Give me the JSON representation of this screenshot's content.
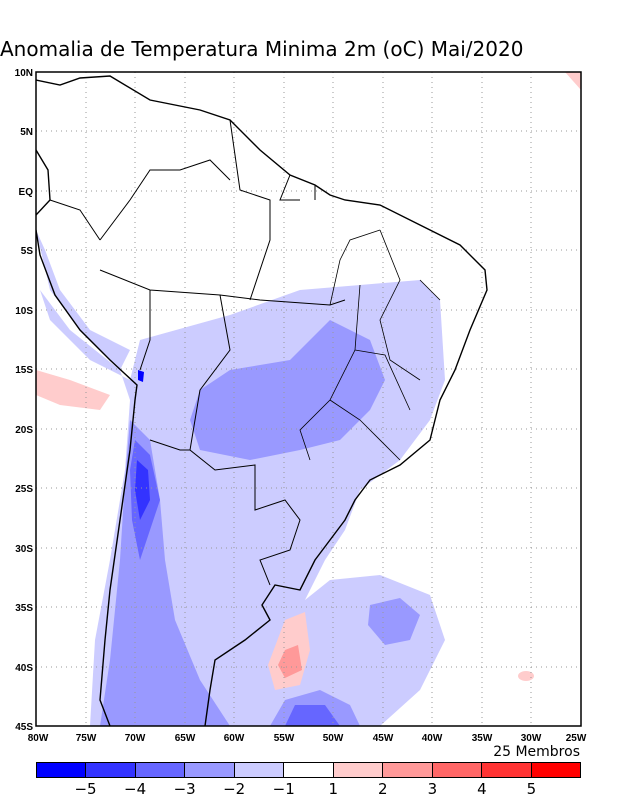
{
  "title": "Anomalia de Temperatura Minima 2m (oC) Mai/2020",
  "members_label": "25 Membros",
  "lat_labels": [
    "10N",
    "5N",
    "EQ",
    "5S",
    "10S",
    "15S",
    "20S",
    "25S",
    "30S",
    "35S",
    "40S",
    "45S"
  ],
  "lon_labels": [
    "80W",
    "75W",
    "70W",
    "65W",
    "60W",
    "55W",
    "50W",
    "45W",
    "40W",
    "35W",
    "30W",
    "25W"
  ],
  "colorbar": {
    "levels": [
      "-5",
      "-4",
      "-3",
      "-2",
      "-1",
      "1",
      "2",
      "3",
      "4",
      "5"
    ],
    "colors": [
      "#0000ff",
      "#3333ff",
      "#6666ff",
      "#9999ff",
      "#ccccff",
      "#ffffff",
      "#ffcccc",
      "#ff9999",
      "#ff6666",
      "#ff3333",
      "#ff0000"
    ]
  }
}
